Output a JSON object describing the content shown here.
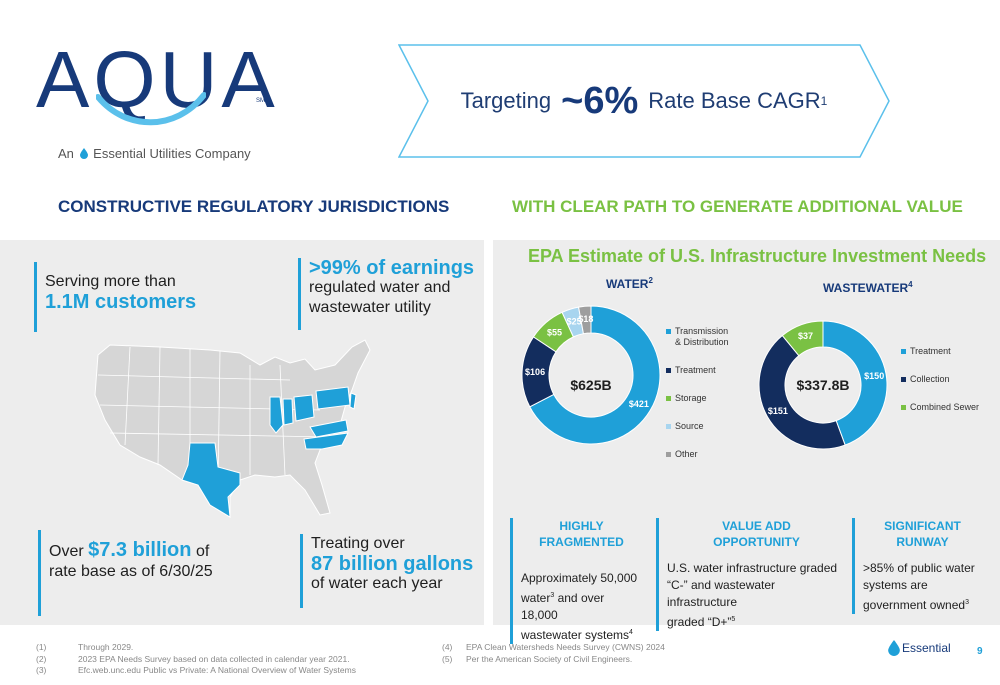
{
  "logo": {
    "wordmark": "AQUA",
    "sm": "SM",
    "tagline_pre": "An",
    "tagline_brand": "Essential",
    "tagline_post": "Utilities Company"
  },
  "banner": {
    "pre": "Targeting",
    "value": "~6%",
    "post": "Rate Base CAGR",
    "note": "1"
  },
  "sections": {
    "left": "CONSTRUCTIVE REGULATORY JURISDICTIONS",
    "right": "WITH CLEAR PATH TO GENERATE ADDITIONAL VALUE"
  },
  "stats": {
    "customers": {
      "line1": "Serving more than",
      "highlight": "1.1M customers"
    },
    "earnings": {
      "highlight": ">99% of earnings",
      "line2": "regulated water and",
      "line3": "wastewater utility"
    },
    "rate_base": {
      "pre": "Over",
      "highlight": "$7.3 billion",
      "post": "of",
      "line2": "rate base as of 6/30/25"
    },
    "gallons": {
      "line1": "Treating over",
      "highlight": "87 billion gallons",
      "line3": "of water each year"
    }
  },
  "epa": {
    "title": "EPA Estimate of U.S. Infrastructure Investment Needs",
    "water": {
      "label": "WATER",
      "note": "2",
      "total": "$625B",
      "slices": [
        {
          "name": "Transmission & Distribution",
          "name_l1": "Transmission",
          "name_l2": "& Distribution",
          "value": 421,
          "label": "$421",
          "color": "#1fa0d8"
        },
        {
          "name": "Treatment",
          "name_l1": "Treatment",
          "name_l2": "",
          "value": 106,
          "label": "$106",
          "color": "#132d5e"
        },
        {
          "name": "Storage",
          "name_l1": "Storage",
          "name_l2": "",
          "value": 55,
          "label": "$55",
          "color": "#7ac143"
        },
        {
          "name": "Source",
          "name_l1": "Source",
          "name_l2": "",
          "value": 25,
          "label": "$25",
          "color": "#a8d5ef"
        },
        {
          "name": "Other",
          "name_l1": "Other",
          "name_l2": "",
          "value": 18,
          "label": "$18",
          "color": "#9e9e9e"
        }
      ]
    },
    "wastewater": {
      "label": "WASTEWATER",
      "note": "4",
      "total": "$337.8B",
      "slices": [
        {
          "name": "Treatment",
          "name_l1": "Treatment",
          "name_l2": "",
          "value": 150,
          "label": "$150",
          "color": "#1fa0d8"
        },
        {
          "name": "Collection",
          "name_l1": "Collection",
          "name_l2": "",
          "value": 151,
          "label": "$151",
          "color": "#132d5e"
        },
        {
          "name": "Combined Sewer",
          "name_l1": "Combined Sewer",
          "name_l2": "",
          "value": 37,
          "label": "$37",
          "color": "#7ac143"
        }
      ]
    }
  },
  "columns": [
    {
      "head1": "HIGHLY",
      "head2": "FRAGMENTED",
      "body": [
        "Approximately 50,000",
        "water",
        "3",
        " and over 18,000",
        "wastewater systems",
        "4"
      ]
    },
    {
      "head1": "VALUE ADD",
      "head2": "OPPORTUNITY",
      "body": [
        "U.S. water infrastructure graded",
        "“C-” and wastewater infrastructure",
        "graded “D+”",
        "5"
      ]
    },
    {
      "head1": "SIGNIFICANT",
      "head2": "RUNWAY",
      "body": [
        ">85% of public water",
        "systems are",
        "government owned",
        "3"
      ]
    }
  ],
  "footnotes_left": [
    {
      "n": "(1)",
      "text": "Through 2029."
    },
    {
      "n": "(2)",
      "text": "2023 EPA Needs Survey based on data collected in calendar year 2021."
    },
    {
      "n": "(3)",
      "text": "Efc.web.unc.edu Public vs Private: A National Overview of Water Systems"
    }
  ],
  "footnotes_right": [
    {
      "n": "(4)",
      "text": "EPA Clean Watersheds Needs Survey (CWNS) 2024"
    },
    {
      "n": "(5)",
      "text": "Per the American Society of Civil Engineers."
    }
  ],
  "footer": {
    "brand": "Essential",
    "page": "9"
  },
  "chart_data": [
    {
      "type": "pie",
      "title": "WATER",
      "categories": [
        "Transmission & Distribution",
        "Treatment",
        "Storage",
        "Source",
        "Other"
      ],
      "values": [
        421,
        106,
        55,
        25,
        18
      ],
      "center_label": "$625B",
      "legend": "right"
    },
    {
      "type": "pie",
      "title": "WASTEWATER",
      "categories": [
        "Treatment",
        "Collection",
        "Combined Sewer"
      ],
      "values": [
        150,
        151,
        37
      ],
      "center_label": "$337.8B",
      "legend": "right"
    }
  ]
}
